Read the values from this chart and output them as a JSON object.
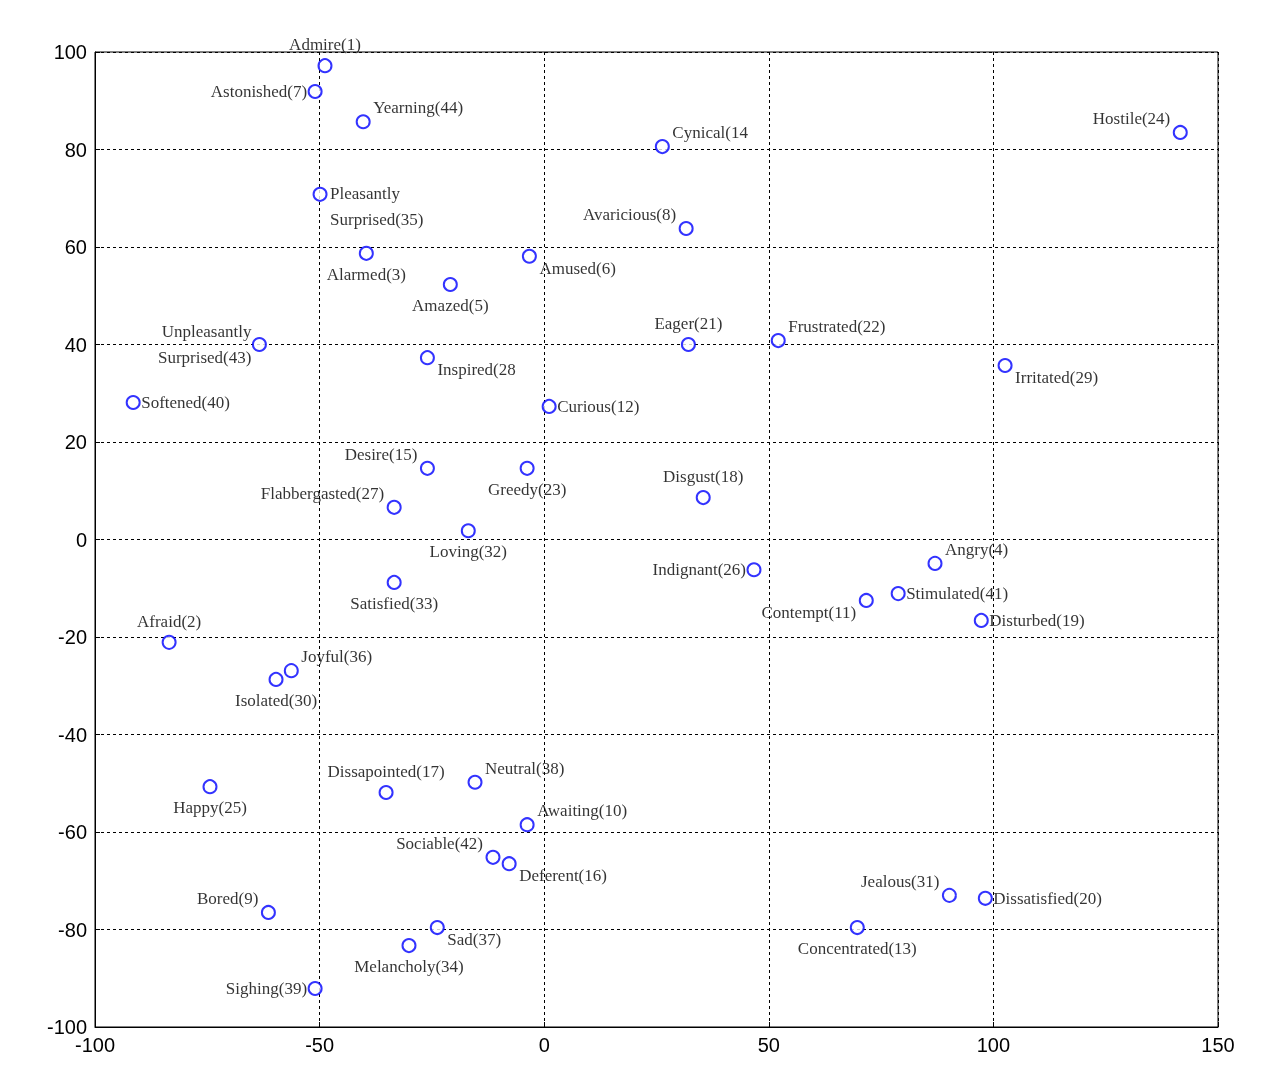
{
  "chart_data": {
    "type": "scatter",
    "color": "#0000ff",
    "marker": "circle",
    "grid": true,
    "xlim": [
      -100,
      150
    ],
    "ylim": [
      -100,
      100
    ],
    "xticks": [
      -100,
      -50,
      0,
      50,
      100,
      150
    ],
    "yticks": [
      -100,
      -80,
      -60,
      -40,
      -20,
      0,
      20,
      40,
      60,
      80,
      100
    ],
    "x": [
      -48.8,
      -51.0,
      -40.3,
      26.3,
      141.6,
      -49.9,
      31.6,
      -39.6,
      -3.3,
      -20.9,
      -63.4,
      32.1,
      52.1,
      -26.0,
      102.6,
      -91.5,
      1.1,
      -26.0,
      -3.8,
      35.4,
      -33.4,
      -16.9,
      46.7,
      87.0,
      -33.4,
      71.7,
      78.8,
      97.3,
      -83.5,
      -56.3,
      -59.7,
      -74.4,
      -35.2,
      -15.4,
      -3.8,
      -11.4,
      -7.8,
      -61.4,
      90.2,
      98.2,
      69.7,
      -23.8,
      -30.1,
      -51.0
    ],
    "values": [
      97.2,
      91.9,
      85.7,
      80.6,
      83.5,
      70.8,
      63.8,
      58.7,
      58.1,
      52.3,
      40.0,
      40.0,
      40.8,
      37.3,
      35.7,
      28.1,
      27.3,
      14.6,
      14.6,
      8.6,
      6.6,
      1.8,
      -6.2,
      -4.9,
      -8.8,
      -12.5,
      -11.1,
      -16.6,
      -21.1,
      -26.9,
      -28.7,
      -50.7,
      -51.9,
      -49.8,
      -58.5,
      -65.2,
      -66.5,
      -76.5,
      -73.0,
      -73.6,
      -79.6,
      -79.6,
      -83.3,
      -92.1
    ],
    "annotations": [
      {
        "text": "Admire(1)",
        "x": -48.8,
        "y": 97.2
      },
      {
        "text": "Astonished(7)",
        "x": -51.0,
        "y": 91.9
      },
      {
        "text": "Yearning(44)",
        "x": -40.3,
        "y": 85.7
      },
      {
        "text": "Cynical(14",
        "x": 26.3,
        "y": 80.6
      },
      {
        "text": "Hostile(24)",
        "x": 141.6,
        "y": 83.5
      },
      {
        "text": "Pleasantly\nSurprised(35)",
        "x": -49.9,
        "y": 70.8
      },
      {
        "text": "Avaricious(8)",
        "x": 31.6,
        "y": 63.8
      },
      {
        "text": "Alarmed(3)",
        "x": -39.6,
        "y": 58.7
      },
      {
        "text": "Amused(6)",
        "x": -3.3,
        "y": 58.1
      },
      {
        "text": "Amazed(5)",
        "x": -20.9,
        "y": 52.3
      },
      {
        "text": "Unpleasantly\nSurprised(43)",
        "x": -63.4,
        "y": 40.0
      },
      {
        "text": "Eager(21)",
        "x": 32.1,
        "y": 40.0
      },
      {
        "text": "Frustrated(22)",
        "x": 52.1,
        "y": 40.8
      },
      {
        "text": "Inspired(28",
        "x": -26.0,
        "y": 37.3
      },
      {
        "text": "Irritated(29)",
        "x": 102.6,
        "y": 35.7
      },
      {
        "text": "Softened(40)",
        "x": -91.5,
        "y": 28.1
      },
      {
        "text": "Curious(12)",
        "x": 1.1,
        "y": 27.3
      },
      {
        "text": "Desire(15)",
        "x": -26.0,
        "y": 14.6
      },
      {
        "text": "Greedy(23)",
        "x": -3.8,
        "y": 14.6
      },
      {
        "text": "Disgust(18)",
        "x": 35.4,
        "y": 8.6
      },
      {
        "text": "Flabbergasted(27)",
        "x": -33.4,
        "y": 6.6
      },
      {
        "text": "Loving(32)",
        "x": -16.9,
        "y": 1.8
      },
      {
        "text": "Indignant(26)",
        "x": 46.7,
        "y": -6.2
      },
      {
        "text": "Angry(4)",
        "x": 87.0,
        "y": -4.9
      },
      {
        "text": "Satisfied(33)",
        "x": -33.4,
        "y": -8.8
      },
      {
        "text": "Contempt(11)",
        "x": 71.7,
        "y": -12.5
      },
      {
        "text": "Stimulated(41)",
        "x": 78.8,
        "y": -11.1
      },
      {
        "text": "Disturbed(19)",
        "x": 97.3,
        "y": -16.6
      },
      {
        "text": "Afraid(2)",
        "x": -83.5,
        "y": -21.1
      },
      {
        "text": "Joyful(36)",
        "x": -56.3,
        "y": -26.9
      },
      {
        "text": "Isolated(30)",
        "x": -59.7,
        "y": -28.7
      },
      {
        "text": "Happy(25)",
        "x": -74.4,
        "y": -50.7
      },
      {
        "text": "Dissapointed(17)",
        "x": -35.2,
        "y": -51.9
      },
      {
        "text": "Neutral(38)",
        "x": -15.4,
        "y": -49.8
      },
      {
        "text": "Awaiting(10)",
        "x": -3.8,
        "y": -58.5
      },
      {
        "text": "Sociable(42)",
        "x": -11.4,
        "y": -65.2
      },
      {
        "text": "Deferent(16)",
        "x": -7.8,
        "y": -66.5
      },
      {
        "text": "Bored(9)",
        "x": -61.4,
        "y": -76.5
      },
      {
        "text": "Jealous(31)",
        "x": 90.2,
        "y": -73.0
      },
      {
        "text": "Dissatisfied(20)",
        "x": 98.2,
        "y": -73.6
      },
      {
        "text": "Concentrated(13)",
        "x": 69.7,
        "y": -79.6
      },
      {
        "text": "Sad(37)",
        "x": -23.8,
        "y": -79.6
      },
      {
        "text": "Melancholy(34)",
        "x": -30.1,
        "y": -83.3
      },
      {
        "text": "Sighing(39)",
        "x": -51.0,
        "y": -92.1
      }
    ]
  }
}
